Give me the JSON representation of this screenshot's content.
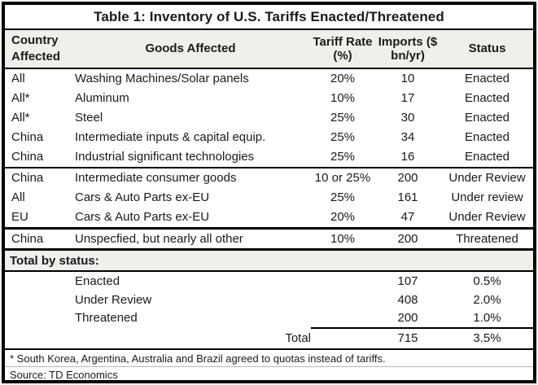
{
  "title": "Table 1: Inventory of U.S. Tariffs Enacted/Threatened",
  "colors": {
    "border": "#000000",
    "header_bg": "#eff0eb",
    "section_heading_bg": "#eff0eb",
    "footnote_divider": "#b9b9b9",
    "text": "#1a1a1a"
  },
  "header": {
    "country": "Country Affected",
    "goods": "Goods Affected",
    "tariff": "Tariff Rate (%)",
    "imports": "Imports ($ bn/yr)",
    "status": "Status"
  },
  "rows": [
    {
      "country": "All",
      "goods": "Washing Machines/Solar panels",
      "tariff": "20%",
      "imports": "10",
      "status": "Enacted"
    },
    {
      "country": "All*",
      "goods": "Aluminum",
      "tariff": "10%",
      "imports": "17",
      "status": "Enacted"
    },
    {
      "country": "All*",
      "goods": "Steel",
      "tariff": "25%",
      "imports": "30",
      "status": "Enacted"
    },
    {
      "country": "China",
      "goods": "Intermediate inputs & capital equip.",
      "tariff": "25%",
      "imports": "34",
      "status": "Enacted"
    },
    {
      "country": "China",
      "goods": "Industrial significant technologies",
      "tariff": "25%",
      "imports": "16",
      "status": "Enacted"
    },
    {
      "country": "China",
      "goods": "Intermediate consumer goods",
      "tariff": "10 or 25%",
      "imports": "200",
      "status": "Under Review"
    },
    {
      "country": "All",
      "goods": "Cars & Auto Parts ex-EU",
      "tariff": "25%",
      "imports": "161",
      "status": "Under review"
    },
    {
      "country": "EU",
      "goods": "Cars & Auto Parts ex-EU",
      "tariff": "20%",
      "imports": "47",
      "status": "Under Review"
    },
    {
      "country": "China",
      "goods": "Unspecfied, but nearly all other",
      "tariff": "10%",
      "imports": "200",
      "status": "Threatened"
    }
  ],
  "totals": {
    "heading": "Total by status:",
    "rows": [
      {
        "label": "Enacted",
        "imports": "107",
        "share": "0.5%"
      },
      {
        "label": "Under Review",
        "imports": "408",
        "share": "2.0%"
      },
      {
        "label": "Threatened",
        "imports": "200",
        "share": "1.0%"
      }
    ],
    "total_label": "Total",
    "total_imports": "715",
    "total_share": "3.5%"
  },
  "footnotes": {
    "note": "* South Korea, Argentina, Australia and Brazil agreed to quotas instead of tariffs.",
    "source": "Source: TD Economics"
  },
  "chart_data": {
    "type": "table",
    "title": "Table 1: Inventory of U.S. Tariffs Enacted/Threatened",
    "columns": [
      "Country Affected",
      "Goods Affected",
      "Tariff Rate (%)",
      "Imports ($ bn/yr)",
      "Status"
    ],
    "rows": [
      [
        "All",
        "Washing Machines/Solar panels",
        "20%",
        10,
        "Enacted"
      ],
      [
        "All*",
        "Aluminum",
        "10%",
        17,
        "Enacted"
      ],
      [
        "All*",
        "Steel",
        "25%",
        30,
        "Enacted"
      ],
      [
        "China",
        "Intermediate inputs & capital equip.",
        "25%",
        34,
        "Enacted"
      ],
      [
        "China",
        "Industrial significant technologies",
        "25%",
        16,
        "Enacted"
      ],
      [
        "China",
        "Intermediate consumer goods",
        "10 or 25%",
        200,
        "Under Review"
      ],
      [
        "All",
        "Cars & Auto Parts ex-EU",
        "25%",
        161,
        "Under review"
      ],
      [
        "EU",
        "Cars & Auto Parts ex-EU",
        "20%",
        47,
        "Under Review"
      ],
      [
        "China",
        "Unspecfied, but nearly all other",
        "10%",
        200,
        "Threatened"
      ]
    ],
    "totals_by_status": [
      {
        "status": "Enacted",
        "imports_bn_yr": 107,
        "share": "0.5%"
      },
      {
        "status": "Under Review",
        "imports_bn_yr": 408,
        "share": "2.0%"
      },
      {
        "status": "Threatened",
        "imports_bn_yr": 200,
        "share": "1.0%"
      },
      {
        "status": "Total",
        "imports_bn_yr": 715,
        "share": "3.5%"
      }
    ]
  }
}
